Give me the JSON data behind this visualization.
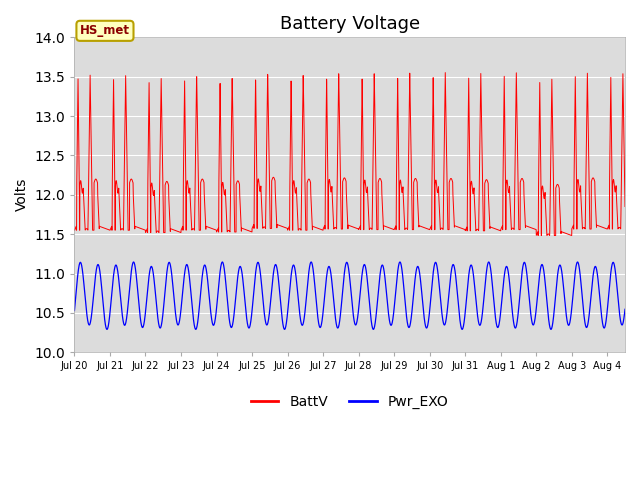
{
  "title": "Battery Voltage",
  "ylabel": "Volts",
  "ylim": [
    10.0,
    14.0
  ],
  "yticks": [
    10.0,
    10.5,
    11.0,
    11.5,
    12.0,
    12.5,
    13.0,
    13.5,
    14.0
  ],
  "plot_bg_color": "#dcdcdc",
  "title_fontsize": 13,
  "annotation_text": "HS_met",
  "annotation_bg": "#ffffc0",
  "annotation_border": "#b8a000",
  "legend_labels": [
    "BattV",
    "Pwr_EXO"
  ],
  "battv_color": "red",
  "pwr_color": "blue",
  "n_days": 15.5,
  "xtick_labels": [
    "Jul 20",
    "Jul 21",
    "Jul 22",
    "Jul 23",
    "Jul 24",
    "Jul 25",
    "Jul 26",
    "Jul 27",
    "Jul 28",
    "Jul 29",
    "Jul 30",
    "Jul 31",
    "Aug 1",
    "Aug 2",
    "Aug 3",
    "Aug 4"
  ]
}
